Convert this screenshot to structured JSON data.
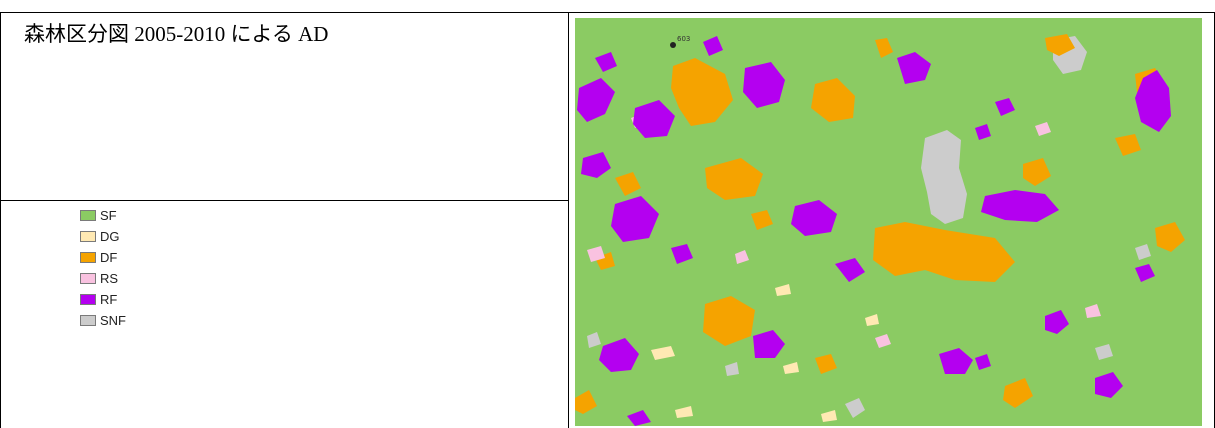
{
  "caption": {
    "title": "森林区分図 2005-2010 による AD"
  },
  "legend": {
    "items": [
      {
        "label": "SF",
        "color": "#8bcb63"
      },
      {
        "label": "DG",
        "color": "#ffe9b3"
      },
      {
        "label": "DF",
        "color": "#f5a300"
      },
      {
        "label": "RS",
        "color": "#f9c2e0"
      },
      {
        "label": "RF",
        "color": "#b400f0"
      },
      {
        "label": "SNF",
        "color": "#cccccc"
      }
    ]
  },
  "map": {
    "marker_label": "603",
    "background_class": "SF"
  }
}
